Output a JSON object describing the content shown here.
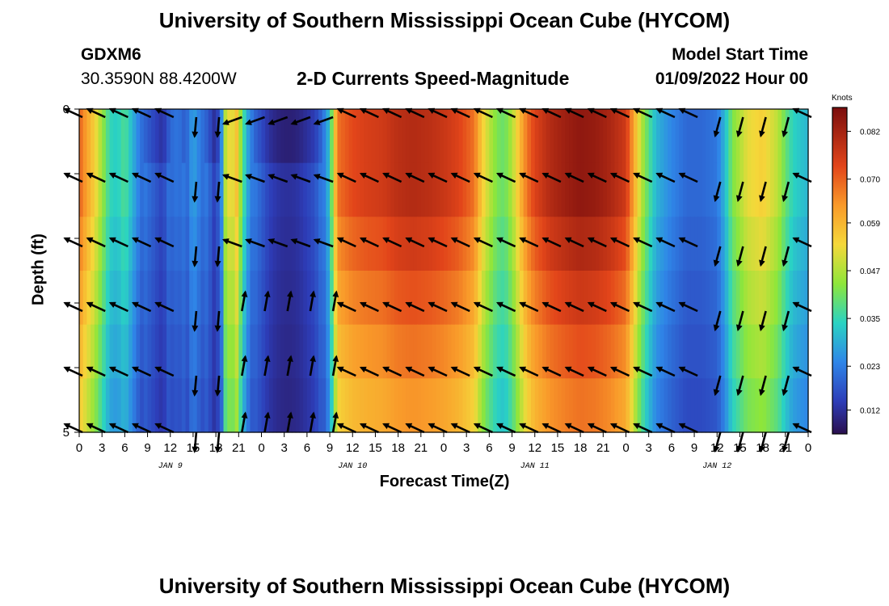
{
  "header": {
    "title": "University of Southern Mississippi Ocean Cube (HYCOM)",
    "station": "GDXM6",
    "coords": "30.3590N  88.4200W",
    "plot_title": "2-D Currents Speed-Magnitude",
    "model_start_label": "Model Start Time",
    "model_start_value": "01/09/2022 Hour 00"
  },
  "footer": {
    "title": "University of Southern Mississippi Ocean Cube (HYCOM)"
  },
  "chart_data": {
    "type": "heatmap",
    "title": "2-D Currents Speed-Magnitude",
    "xlabel": "Forecast Time(Z)",
    "ylabel": "Depth (ft)",
    "yticks": [
      "0",
      "5"
    ],
    "ylim": [
      0,
      5
    ],
    "x_hours": [
      0,
      3,
      6,
      9,
      12,
      15,
      18,
      21,
      24,
      27,
      30,
      33,
      36,
      39,
      42,
      45,
      48,
      51,
      54,
      57,
      60,
      63,
      66,
      69,
      72,
      75,
      78,
      81,
      84,
      87,
      90,
      93,
      96
    ],
    "xticklabels": [
      "0",
      "3",
      "6",
      "9",
      "12",
      "15",
      "18",
      "21",
      "0",
      "3",
      "6",
      "9",
      "12",
      "15",
      "18",
      "21",
      "0",
      "3",
      "6",
      "9",
      "12",
      "15",
      "18",
      "21",
      "0",
      "3",
      "6",
      "9",
      "12",
      "15",
      "18",
      "21",
      "0"
    ],
    "day_labels": [
      {
        "label": "JAN 9",
        "hour": 12
      },
      {
        "label": "JAN 10",
        "hour": 36
      },
      {
        "label": "JAN 11",
        "hour": 60
      },
      {
        "label": "JAN 12",
        "hour": 84
      }
    ],
    "colorbar": {
      "unit": "Knots",
      "min": 0.006,
      "max": 0.088,
      "ticks": [
        "0.082",
        "0.070",
        "0.059",
        "0.047",
        "0.035",
        "0.023",
        "0.012"
      ],
      "tick_values": [
        0.082,
        0.07,
        0.059,
        0.047,
        0.035,
        0.023,
        0.012
      ]
    },
    "speed_profile": [
      {
        "h": 0,
        "v": 0.07
      },
      {
        "h": 1,
        "v": 0.062
      },
      {
        "h": 2,
        "v": 0.055
      },
      {
        "h": 3,
        "v": 0.045
      },
      {
        "h": 4,
        "v": 0.035
      },
      {
        "h": 5,
        "v": 0.033
      },
      {
        "h": 6,
        "v": 0.038
      },
      {
        "h": 7,
        "v": 0.03
      },
      {
        "h": 8,
        "v": 0.022
      },
      {
        "h": 9,
        "v": 0.018
      },
      {
        "h": 10,
        "v": 0.015
      },
      {
        "h": 11,
        "v": 0.012
      },
      {
        "h": 12,
        "v": 0.02
      },
      {
        "h": 13,
        "v": 0.022
      },
      {
        "h": 14,
        "v": 0.018
      },
      {
        "h": 15,
        "v": 0.028
      },
      {
        "h": 16,
        "v": 0.022
      },
      {
        "h": 17,
        "v": 0.018
      },
      {
        "h": 18,
        "v": 0.01
      },
      {
        "h": 19,
        "v": 0.03
      },
      {
        "h": 19.5,
        "v": 0.065
      },
      {
        "h": 20,
        "v": 0.04
      },
      {
        "h": 20.5,
        "v": 0.064
      },
      {
        "h": 21,
        "v": 0.05
      },
      {
        "h": 22,
        "v": 0.03
      },
      {
        "h": 23,
        "v": 0.02
      },
      {
        "h": 24,
        "v": 0.016
      },
      {
        "h": 25,
        "v": 0.012
      },
      {
        "h": 26,
        "v": 0.01
      },
      {
        "h": 27,
        "v": 0.009
      },
      {
        "h": 28,
        "v": 0.009
      },
      {
        "h": 29,
        "v": 0.01
      },
      {
        "h": 30,
        "v": 0.012
      },
      {
        "h": 31,
        "v": 0.014
      },
      {
        "h": 32,
        "v": 0.02
      },
      {
        "h": 33,
        "v": 0.032
      },
      {
        "h": 33.5,
        "v": 0.05
      },
      {
        "h": 34,
        "v": 0.068
      },
      {
        "h": 36,
        "v": 0.073
      },
      {
        "h": 38,
        "v": 0.075
      },
      {
        "h": 40,
        "v": 0.076
      },
      {
        "h": 42,
        "v": 0.079
      },
      {
        "h": 44,
        "v": 0.08
      },
      {
        "h": 46,
        "v": 0.079
      },
      {
        "h": 48,
        "v": 0.077
      },
      {
        "h": 50,
        "v": 0.074
      },
      {
        "h": 52,
        "v": 0.068
      },
      {
        "h": 53,
        "v": 0.056
      },
      {
        "h": 54,
        "v": 0.048
      },
      {
        "h": 55,
        "v": 0.042
      },
      {
        "h": 56,
        "v": 0.04
      },
      {
        "h": 57,
        "v": 0.047
      },
      {
        "h": 58,
        "v": 0.058
      },
      {
        "h": 59,
        "v": 0.068
      },
      {
        "h": 60,
        "v": 0.074
      },
      {
        "h": 62,
        "v": 0.08
      },
      {
        "h": 64,
        "v": 0.083
      },
      {
        "h": 66,
        "v": 0.085
      },
      {
        "h": 68,
        "v": 0.084
      },
      {
        "h": 70,
        "v": 0.081
      },
      {
        "h": 72,
        "v": 0.076
      },
      {
        "h": 73,
        "v": 0.062
      },
      {
        "h": 74,
        "v": 0.048
      },
      {
        "h": 75,
        "v": 0.038
      },
      {
        "h": 76,
        "v": 0.03
      },
      {
        "h": 78,
        "v": 0.024
      },
      {
        "h": 80,
        "v": 0.02
      },
      {
        "h": 82,
        "v": 0.02
      },
      {
        "h": 84,
        "v": 0.022
      },
      {
        "h": 85,
        "v": 0.03
      },
      {
        "h": 86,
        "v": 0.042
      },
      {
        "h": 88,
        "v": 0.052
      },
      {
        "h": 90,
        "v": 0.055
      },
      {
        "h": 92,
        "v": 0.048
      },
      {
        "h": 93,
        "v": 0.04
      },
      {
        "h": 94,
        "v": 0.034
      },
      {
        "h": 96,
        "v": 0.03
      }
    ],
    "depth_factors": [
      1.0,
      1.0,
      0.95,
      0.9,
      0.85,
      0.8
    ]
  }
}
